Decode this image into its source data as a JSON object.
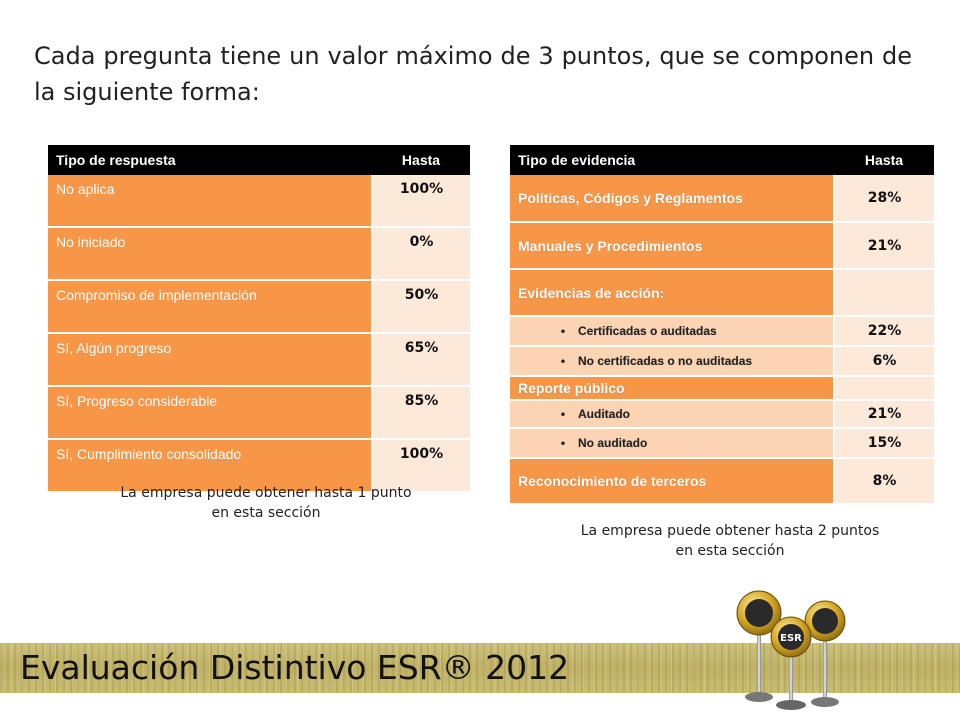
{
  "heading": "Cada pregunta tiene un valor máximo de 3 puntos, que se componen de la siguiente forma:",
  "table_respuesta": {
    "headers": [
      "Tipo de respuesta",
      "Hasta"
    ],
    "rows": [
      {
        "label": "No aplica",
        "value": "100%"
      },
      {
        "label": "No iniciado",
        "value": "0%"
      },
      {
        "label": "Compromiso de implementación",
        "value": "50%"
      },
      {
        "label": "Sí, Algún progreso",
        "value": "65%"
      },
      {
        "label": "Sí, Progreso considerable",
        "value": "85%"
      },
      {
        "label": "Sí, Cumplimiento consolidado",
        "value": "100%"
      }
    ],
    "note_line1": "La empresa puede obtener hasta 1 punto",
    "note_line2": "en esta sección"
  },
  "table_evidencia": {
    "headers": [
      "Tipo de evidencia",
      "Hasta"
    ],
    "rows": [
      {
        "label": "Políticas, Códigos y Reglamentos",
        "value": "28%"
      },
      {
        "label": "Manuales y Procedimientos",
        "value": "21%"
      },
      {
        "label": "Evidencias de acción:",
        "value": ""
      },
      {
        "label": "Certificadas o auditadas",
        "value": "22%"
      },
      {
        "label": "No certificadas o no auditadas",
        "value": "6%"
      },
      {
        "label": "Reporte público",
        "value": ""
      },
      {
        "label": "Auditado",
        "value": "21%"
      },
      {
        "label": "No auditado",
        "value": "15%"
      },
      {
        "label": "Reconocimiento de terceros",
        "value": "8%"
      }
    ],
    "note_line1": "La empresa puede obtener hasta 2 puntos",
    "note_line2": "en esta sección"
  },
  "footer": {
    "title": "Evaluación Distintivo ESR® 2012",
    "logo_text": "ESR",
    "band_color": "#c4b76e"
  },
  "colors": {
    "header_bg": "#000000",
    "label_bg": "#f79646",
    "sub_label_bg": "#fbd4b4",
    "value_bg": "#fde9d9"
  }
}
